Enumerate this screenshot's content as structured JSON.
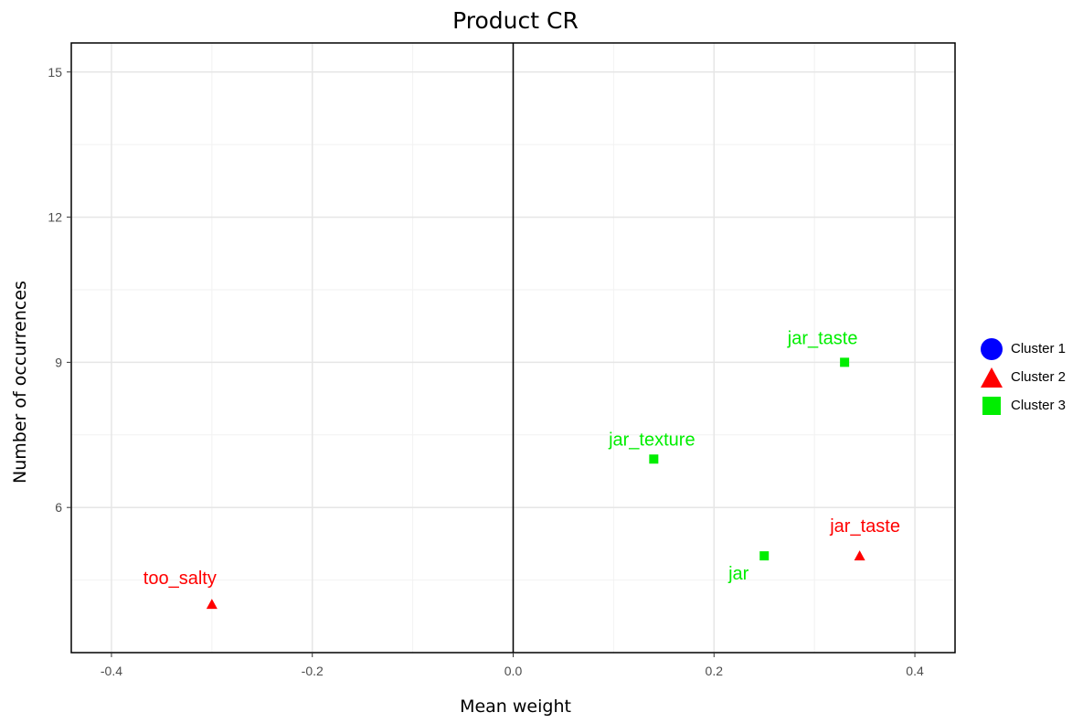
{
  "chart_data": {
    "type": "scatter",
    "title": "Product CR",
    "xlabel": "Mean weight",
    "ylabel": "Number of occurrences",
    "xlim": [
      -0.44,
      0.44
    ],
    "ylim": [
      3.0,
      15.6
    ],
    "xticks": [
      -0.4,
      -0.2,
      0.0,
      0.2,
      0.4
    ],
    "xtick_labels": [
      "-0.4",
      "-0.2",
      "0.0",
      "0.2",
      "0.4"
    ],
    "yticks": [
      6,
      9,
      12,
      15
    ],
    "ytick_labels": [
      "6",
      "9",
      "12",
      "15"
    ],
    "grid": true,
    "reference_line_x": 0.0,
    "legend_position": "right",
    "series": [
      {
        "name": "Cluster 1",
        "color": "#0000ff",
        "shape": "circle",
        "points": []
      },
      {
        "name": "Cluster 2",
        "color": "#ff0000",
        "shape": "triangle",
        "points": [
          {
            "x": -0.3,
            "y": 4,
            "label": "too_salty"
          },
          {
            "x": 0.345,
            "y": 5,
            "label": "jar_taste"
          }
        ]
      },
      {
        "name": "Cluster 3",
        "color": "#00ee00",
        "shape": "square",
        "points": [
          {
            "x": 0.33,
            "y": 9,
            "label": "jar_taste"
          },
          {
            "x": 0.14,
            "y": 7,
            "label": "jar_texture"
          },
          {
            "x": 0.25,
            "y": 5,
            "label": "jar"
          }
        ]
      }
    ]
  }
}
